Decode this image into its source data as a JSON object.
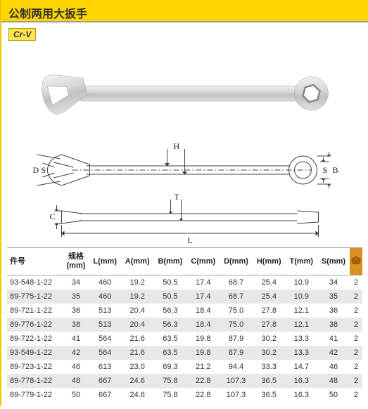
{
  "title": "公制两用大扳手",
  "badge": "Cr-V",
  "diagram_labels": {
    "H": "H",
    "S": "S",
    "D": "D",
    "B": "B",
    "T": "T",
    "C": "C",
    "L": "L"
  },
  "table": {
    "columns": [
      "件号",
      "规格 (mm)",
      "L(mm)",
      "A(mm)",
      "B(mm)",
      "C(mm)",
      "D(mm)",
      "H(mm)",
      "T(mm)",
      "S(mm)",
      ""
    ],
    "icon_header_color": "#d89020",
    "rows": [
      [
        "93-548-1-22",
        "34",
        "460",
        "19.2",
        "50.5",
        "17.4",
        "68.7",
        "25.4",
        "10.9",
        "34",
        "2"
      ],
      [
        "89-775-1-22",
        "35",
        "460",
        "19.2",
        "50.5",
        "17.4",
        "68.7",
        "25.4",
        "10.9",
        "35",
        "2"
      ],
      [
        "89-721-1-22",
        "36",
        "513",
        "20.4",
        "56.3",
        "18.4",
        "75.0",
        "27.8",
        "12.1",
        "36",
        "2"
      ],
      [
        "89-776-1-22",
        "38",
        "513",
        "20.4",
        "56.3",
        "18.4",
        "75.0",
        "27.8",
        "12.1",
        "38",
        "2"
      ],
      [
        "89-722-1-22",
        "41",
        "564",
        "21.6",
        "63.5",
        "19.8",
        "87.9",
        "30.2",
        "13.3",
        "41",
        "2"
      ],
      [
        "93-549-1-22",
        "42",
        "564",
        "21.6",
        "63.5",
        "19.8",
        "87.9",
        "30.2",
        "13.3",
        "42",
        "2"
      ],
      [
        "89-723-1-22",
        "46",
        "613",
        "23.0",
        "69.3",
        "21.2",
        "94.4",
        "33.3",
        "14.7",
        "46",
        "2"
      ],
      [
        "89-778-1-22",
        "48",
        "667",
        "24.6",
        "75.8",
        "22.8",
        "107.3",
        "36.5",
        "16.3",
        "48",
        "2"
      ],
      [
        "89-779-1-22",
        "50",
        "667",
        "24.6",
        "75.8",
        "22.8",
        "107.3",
        "36.5",
        "16.3",
        "50",
        "2"
      ]
    ]
  },
  "colors": {
    "title_bg": "#ffd500",
    "badge_bg": "#ffe34d",
    "row_even": "#e8e8e8",
    "row_odd": "#ffffff",
    "border": "#a0a0a0",
    "wrench": "#d8d8d8",
    "wrench_dark": "#b8b8b8",
    "diagram_line": "#404040"
  }
}
